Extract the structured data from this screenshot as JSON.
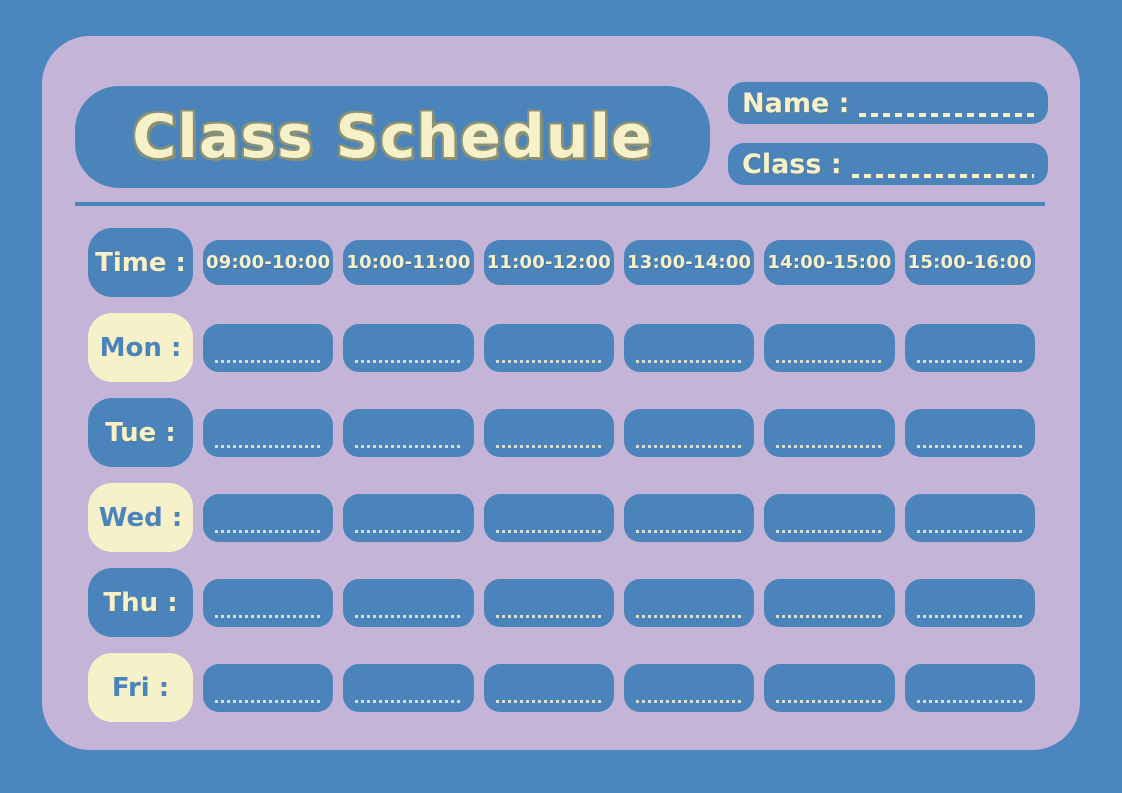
{
  "title": "Class Schedule",
  "fields": {
    "name_label": "Name :",
    "class_label": "Class :"
  },
  "schedule": {
    "time_header": "Time :",
    "time_slots": [
      "09:00-10:00",
      "10:00-11:00",
      "11:00-12:00",
      "13:00-14:00",
      "14:00-15:00",
      "15:00-16:00"
    ],
    "days": [
      {
        "key": "mon",
        "label": "Mon :",
        "style": "cream"
      },
      {
        "key": "tue",
        "label": "Tue :",
        "style": "blue"
      },
      {
        "key": "wed",
        "label": "Wed :",
        "style": "cream"
      },
      {
        "key": "thu",
        "label": "Thu :",
        "style": "blue"
      },
      {
        "key": "fri",
        "label": "Fri :",
        "style": "cream"
      }
    ]
  },
  "colors": {
    "background_blue": "#4C86BE",
    "card_lavender": "#C4B5D8",
    "box_blue": "#4A84BB",
    "cream": "#F7F1C9",
    "title_outline_olive": "#8C9173"
  }
}
